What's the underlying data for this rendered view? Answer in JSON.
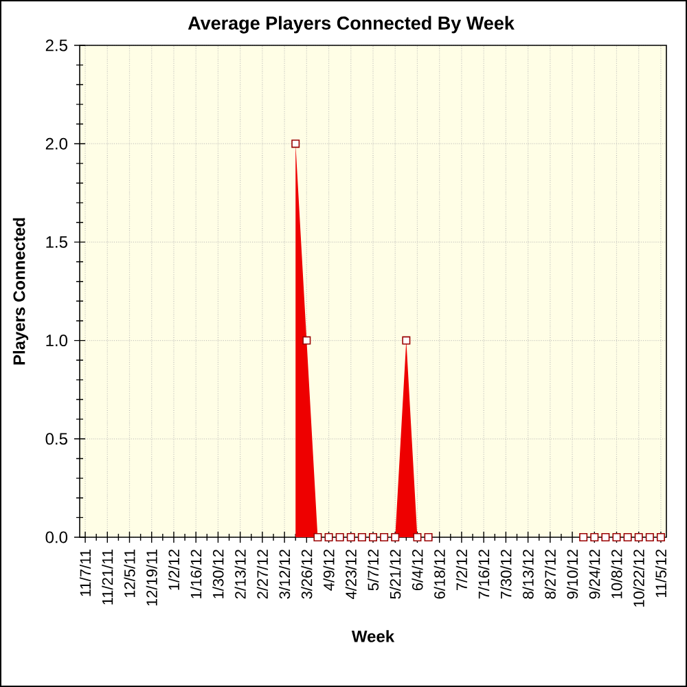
{
  "chart_data": {
    "type": "area",
    "title": "Average Players Connected By Week",
    "xlabel": "Week",
    "ylabel": "Players Connected",
    "categories": [
      "11/7/11",
      null,
      "11/21/11",
      null,
      "12/5/11",
      null,
      "12/19/11",
      null,
      "1/2/12",
      null,
      "1/16/12",
      null,
      "1/30/12",
      null,
      "2/13/12",
      null,
      "2/27/12",
      null,
      "3/12/12",
      null,
      "3/26/12",
      null,
      "4/9/12",
      null,
      "4/23/12",
      null,
      "5/7/12",
      null,
      "5/21/12",
      null,
      "6/4/12",
      null,
      "6/18/12",
      null,
      "7/2/12",
      null,
      "7/16/12",
      null,
      "7/30/12",
      null,
      "8/13/12",
      null,
      "8/27/12",
      null,
      "9/10/12",
      null,
      "9/24/12",
      null,
      "10/8/12",
      null,
      "10/22/12",
      null,
      "11/5/12"
    ],
    "values": [
      null,
      null,
      null,
      null,
      null,
      null,
      null,
      null,
      null,
      null,
      null,
      null,
      null,
      null,
      null,
      null,
      null,
      null,
      null,
      2.0,
      1.0,
      0,
      0,
      0,
      0,
      0,
      0,
      0,
      0,
      1.0,
      0,
      0,
      null,
      null,
      null,
      null,
      null,
      null,
      null,
      null,
      null,
      null,
      null,
      null,
      null,
      0,
      0,
      0,
      0,
      0,
      0,
      0,
      0
    ],
    "color": "#ee0000",
    "ylim": [
      0,
      2.5
    ],
    "yticks": [
      {
        "value": 0,
        "label": "0.0"
      },
      0.5,
      {
        "value": 1,
        "label": "1.0"
      },
      1.5,
      {
        "value": 2,
        "label": "2.0"
      },
      2.5
    ],
    "grid": true,
    "marker": "square"
  }
}
